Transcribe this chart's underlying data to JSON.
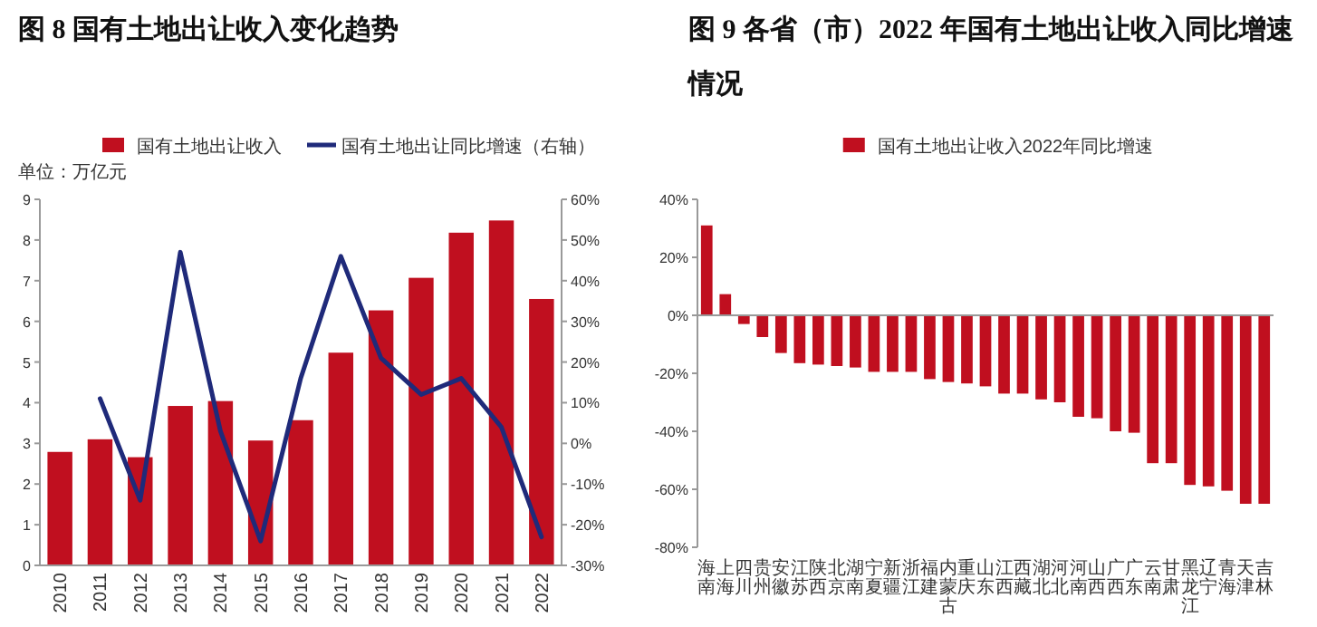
{
  "chart_data": [
    {
      "type": "bar",
      "title": "图 8 国有土地出让收入变化趋势",
      "ylabel": "单位：万亿元",
      "legend": "top",
      "categories": [
        "2010",
        "2011",
        "2012",
        "2013",
        "2014",
        "2015",
        "2016",
        "2017",
        "2018",
        "2019",
        "2020",
        "2021",
        "2022"
      ],
      "series": [
        {
          "name": "国有土地出让收入",
          "color": "#c00f1f",
          "values": [
            2.79,
            3.1,
            2.66,
            3.92,
            4.04,
            3.07,
            3.57,
            5.23,
            6.27,
            7.07,
            8.18,
            8.48,
            6.55
          ]
        },
        {
          "name": "国有土地出让同比增速（右轴）",
          "type": "line",
          "axis": "y2",
          "color": "#1f2a7a",
          "values": [
            null,
            11,
            -14,
            47,
            3,
            -24,
            16,
            46,
            21,
            12,
            16,
            4,
            -23
          ]
        }
      ],
      "ylim": [
        0,
        9
      ],
      "yticks": [
        0,
        1,
        2,
        3,
        4,
        5,
        6,
        7,
        8,
        9
      ],
      "y2lim": [
        -30,
        60
      ],
      "y2ticks": [
        {
          "value": -30,
          "label": "-30%"
        },
        {
          "value": -20,
          "label": "-20%"
        },
        {
          "value": -10,
          "label": "-10%"
        },
        {
          "value": 0,
          "label": "0%"
        },
        {
          "value": 10,
          "label": "10%"
        },
        {
          "value": 20,
          "label": "20%"
        },
        {
          "value": 30,
          "label": "30%"
        },
        {
          "value": 40,
          "label": "40%"
        },
        {
          "value": 50,
          "label": "50%"
        },
        {
          "value": 60,
          "label": "60%"
        }
      ]
    },
    {
      "type": "bar",
      "title": "图 9 各省（市）2022 年国有土地出让收入同比增速情况",
      "legend": "top",
      "categories": [
        "海南",
        "上海",
        "四川",
        "贵州",
        "安徽",
        "江苏",
        "陕西",
        "北京",
        "湖南",
        "宁夏",
        "新疆",
        "浙江",
        "福建",
        "内蒙古",
        "重庆",
        "山东",
        "江西",
        "西藏",
        "湖北",
        "河北",
        "河南",
        "山西",
        "广西",
        "广东",
        "云南",
        "甘肃",
        "黑龙江",
        "辽宁",
        "青海",
        "天津",
        "吉林"
      ],
      "series": [
        {
          "name": "国有土地出让收入2022年同比增速",
          "color": "#c00f1f",
          "values": [
            31,
            7.3,
            -3,
            -7.5,
            -13,
            -16.5,
            -17,
            -17.5,
            -18,
            -19.5,
            -19.5,
            -19.5,
            -22,
            -23,
            -23.5,
            -24.5,
            -27,
            -27,
            -29,
            -30,
            -35,
            -35.5,
            -40,
            -40.5,
            -51,
            -51,
            -58.5,
            -59,
            -60.5,
            -65,
            -65
          ]
        }
      ],
      "ylim": [
        -80,
        40
      ],
      "yticks": [
        {
          "value": -80,
          "label": "-80%"
        },
        {
          "value": -60,
          "label": "-60%"
        },
        {
          "value": -40,
          "label": "-40%"
        },
        {
          "value": -20,
          "label": "-20%"
        },
        {
          "value": 0,
          "label": "0%"
        },
        {
          "value": 20,
          "label": "20%"
        },
        {
          "value": 40,
          "label": "40%"
        }
      ]
    }
  ]
}
